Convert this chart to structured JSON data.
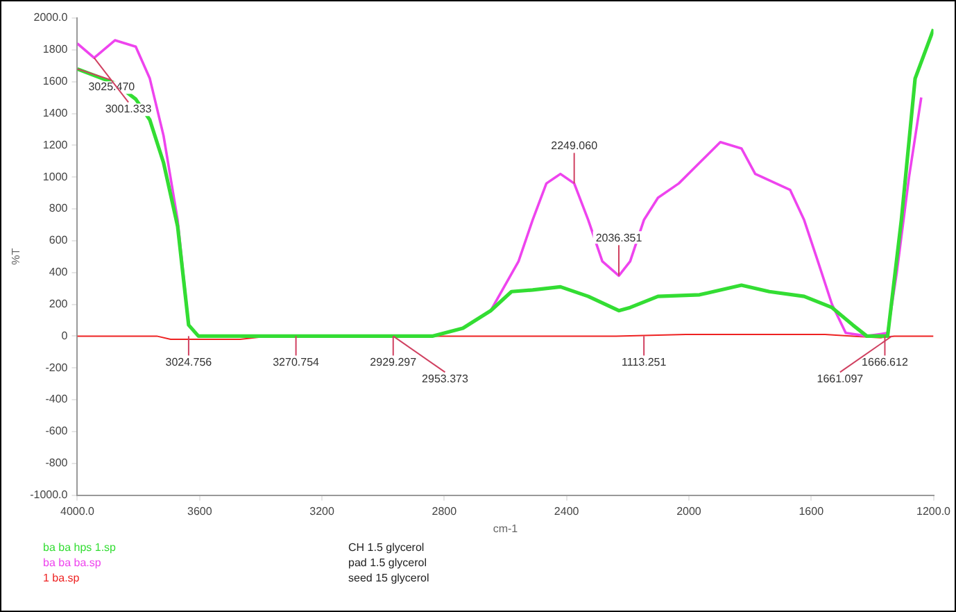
{
  "chart_data": {
    "type": "line",
    "xlabel": "cm-1",
    "ylabel": "%T",
    "xlim": [
      4000,
      1200
    ],
    "xticks": [
      {
        "value": 4000,
        "label": "4000.0"
      },
      3600,
      3200,
      2800,
      2400,
      2000,
      1600,
      {
        "value": 1200,
        "label": "1200.0"
      }
    ],
    "ylim": [
      -1000,
      2000
    ],
    "yticks": [
      {
        "value": -1000,
        "label": "-1000.0"
      },
      -800,
      -600,
      -400,
      -200,
      0,
      200,
      400,
      600,
      800,
      1000,
      1200,
      1400,
      1600,
      1800,
      {
        "value": 2000,
        "label": "2000.0"
      }
    ],
    "legend": "bottom left",
    "marker": "none",
    "line_style": "solid",
    "series": [
      {
        "name": "ba ba hps 1.sp",
        "color": "#33dd33",
        "x": [
          4000,
          3877,
          3809,
          3763,
          3718,
          3672,
          3636,
          3604,
          2839,
          2739,
          2648,
          2580,
          2511,
          2420,
          2329,
          2229,
          2192,
          2101,
          1965,
          1828,
          1737,
          1623,
          1532,
          1464,
          1418,
          1350,
          1305,
          1260,
          1200
        ],
        "values": [
          1680,
          1590,
          1490,
          1360,
          1090,
          690,
          70,
          0,
          0,
          50,
          160,
          280,
          290,
          310,
          250,
          160,
          180,
          250,
          260,
          320,
          280,
          250,
          180,
          70,
          0,
          0,
          730,
          1620,
          1930
        ]
      },
      {
        "name": "ba ba ba.sp",
        "color": "#ee44ee",
        "x": [
          4000,
          3945,
          3877,
          3809,
          3763,
          3718,
          3672,
          3636,
          3604,
          2839,
          2739,
          2648,
          2557,
          2511,
          2466,
          2420,
          2375,
          2329,
          2283,
          2229,
          2192,
          2147,
          2101,
          2033,
          1965,
          1897,
          1828,
          1783,
          1737,
          1669,
          1623,
          1578,
          1532,
          1487,
          1418,
          1350,
          1320,
          1280,
          1240
        ],
        "values": [
          1840,
          1750,
          1860,
          1820,
          1620,
          1260,
          730,
          70,
          0,
          0,
          50,
          160,
          470,
          730,
          960,
          1020,
          960,
          730,
          470,
          380,
          470,
          730,
          870,
          960,
          1090,
          1220,
          1180,
          1020,
          980,
          920,
          730,
          470,
          200,
          20,
          0,
          20,
          400,
          1000,
          1500
        ]
      },
      {
        "name": "1 ba.sp",
        "color": "#ee2222",
        "x": [
          4000,
          3740,
          3695,
          3467,
          3376,
          2238,
          2010,
          1555,
          1464,
          1373,
          1328,
          1200
        ],
        "values": [
          0,
          0,
          -20,
          -20,
          0,
          0,
          10,
          10,
          0,
          -10,
          0,
          0
        ]
      }
    ],
    "annotations": [
      {
        "text": "3025.470",
        "x": 4000,
        "y": 1680
      },
      {
        "text": "3001.333",
        "x": 3945,
        "y": 1750
      },
      {
        "text": "3024.756",
        "x": 3636,
        "y": 0
      },
      {
        "text": "3270.754",
        "x": 3285,
        "y": 0
      },
      {
        "text": "2929.297",
        "x": 2967,
        "y": 0
      },
      {
        "text": "2953.373",
        "x": 2967,
        "y": 0
      },
      {
        "text": "2249.060",
        "x": 2375,
        "y": 960
      },
      {
        "text": "2036.351",
        "x": 2229,
        "y": 380
      },
      {
        "text": "1113.251",
        "x": 2147,
        "y": 0
      },
      {
        "text": "1666.612",
        "x": 1359,
        "y": 0
      },
      {
        "text": "1661.097",
        "x": 1336,
        "y": 0
      },
      "CH 1.5 glycerol",
      "pad 1.5 glycerol",
      "seed 15 glycerol"
    ]
  }
}
